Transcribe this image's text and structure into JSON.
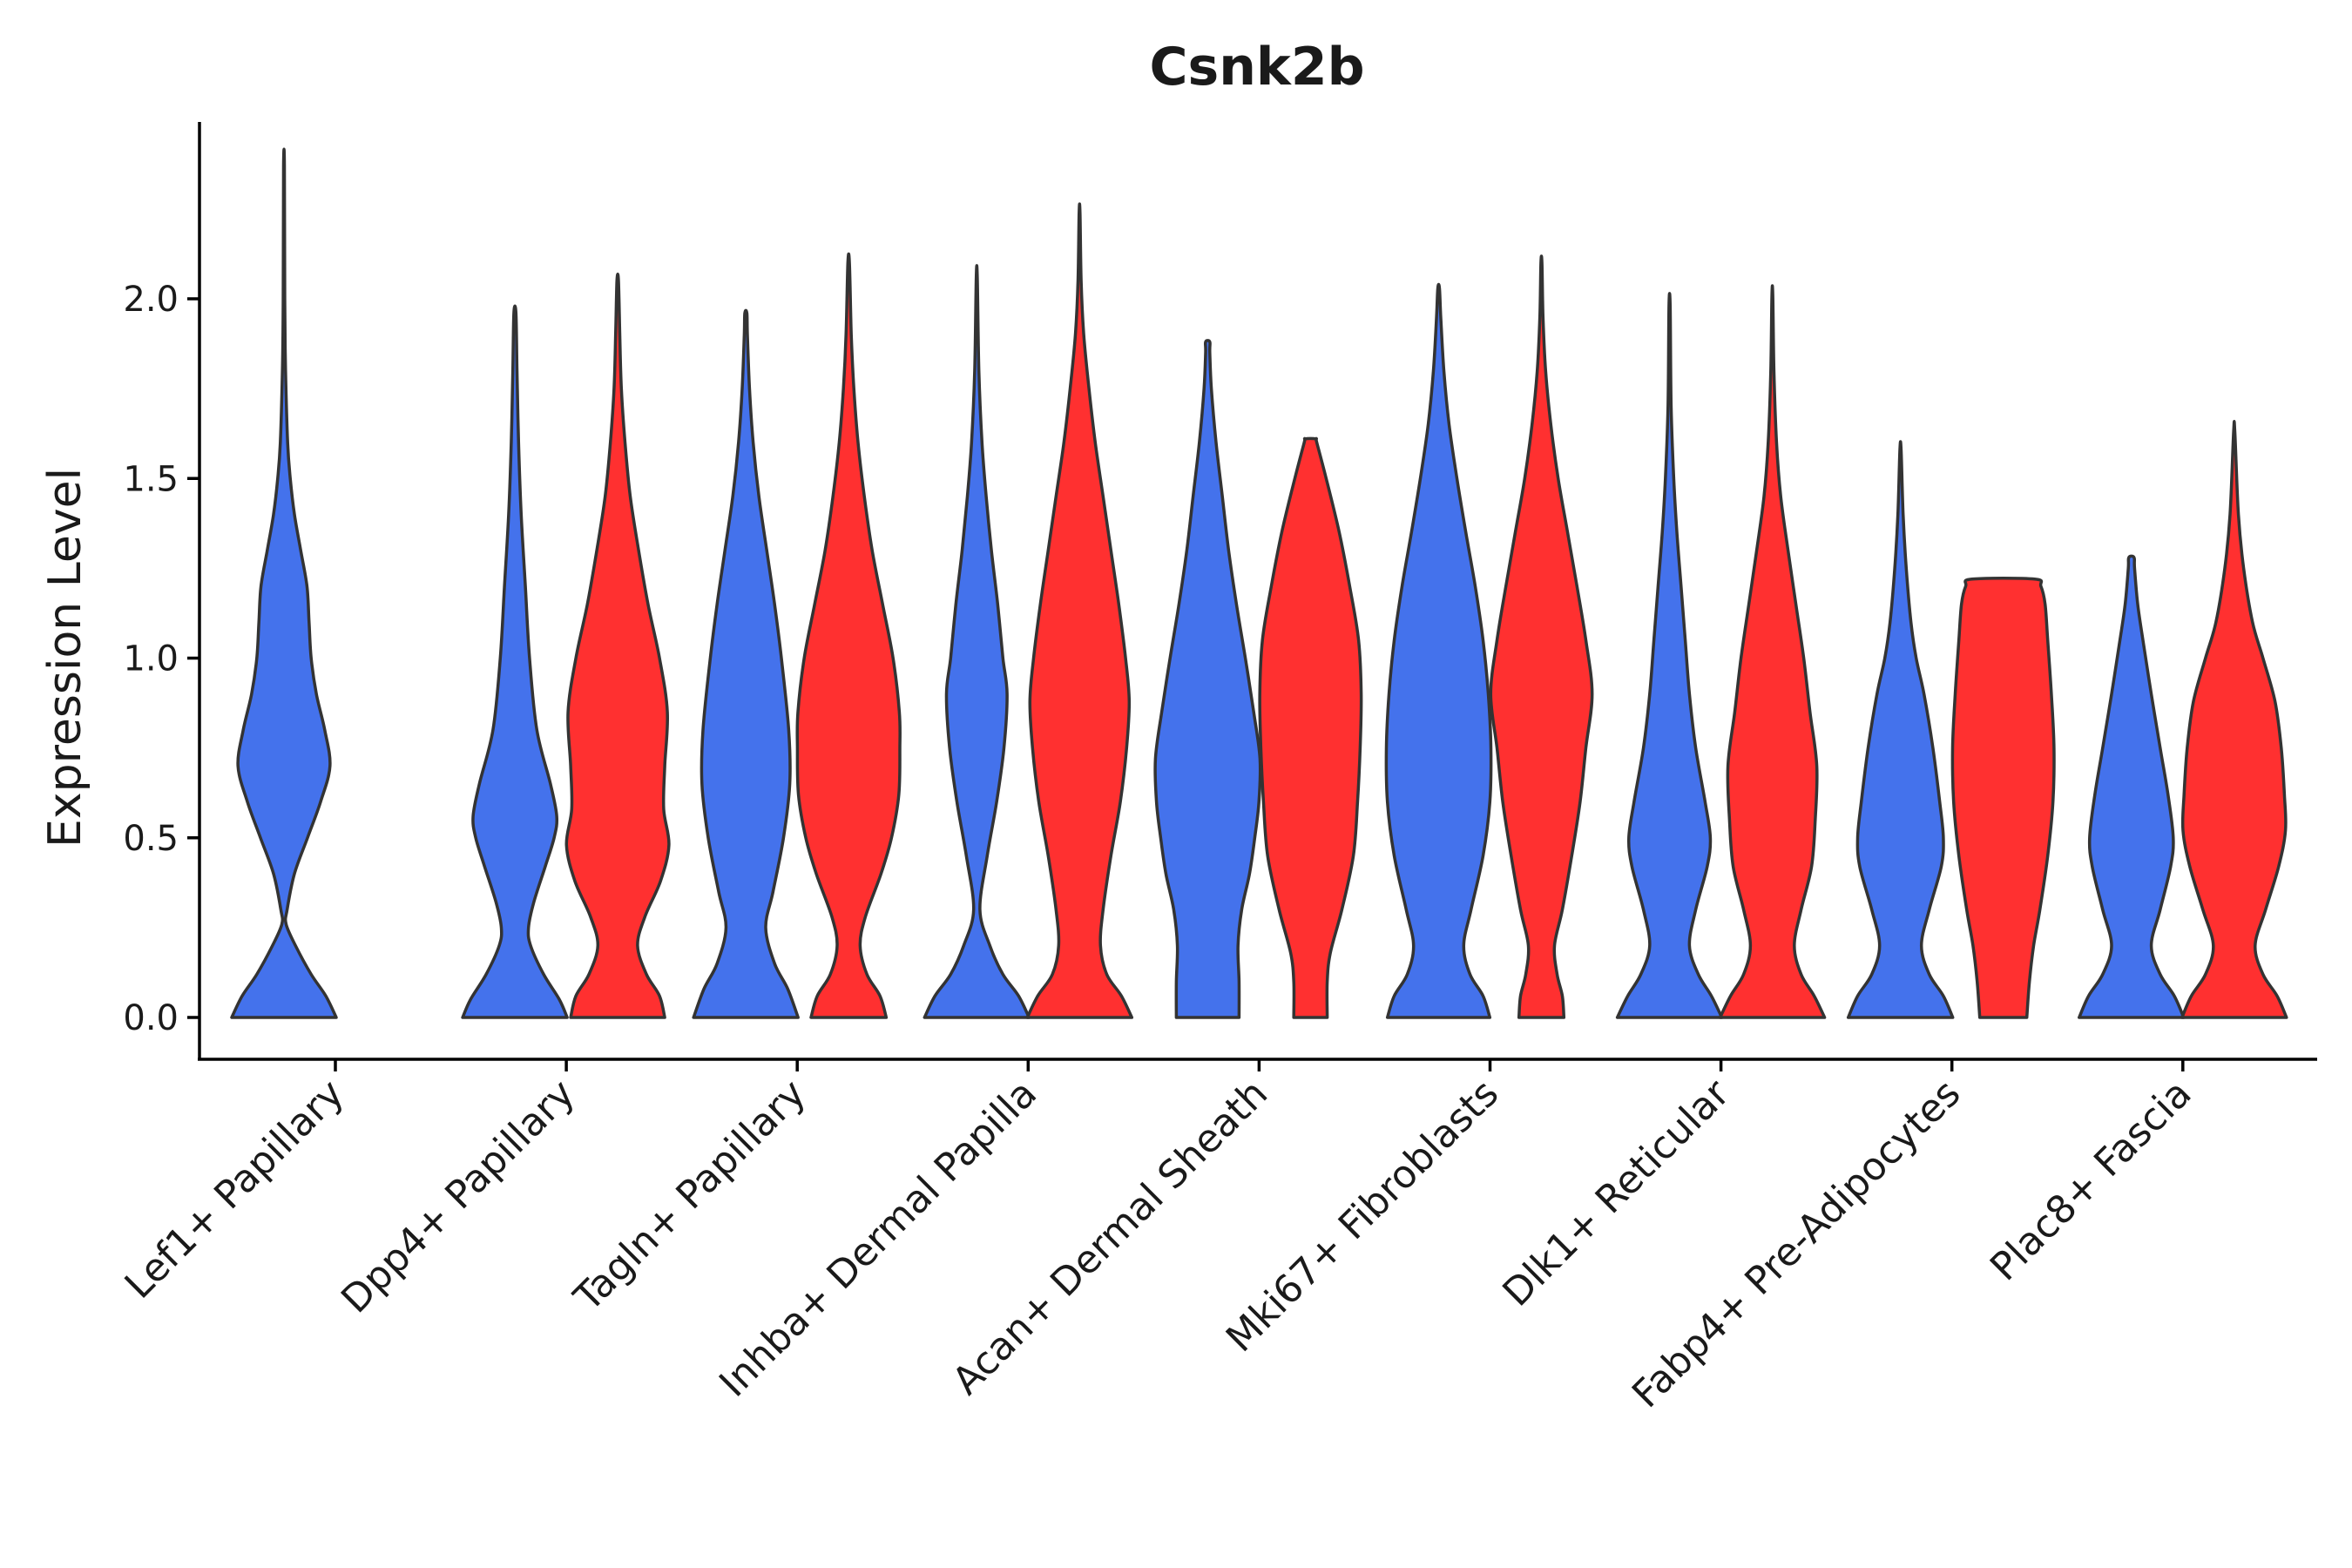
{
  "chart_data": {
    "type": "violin",
    "title": "Csnk2b",
    "xlabel": "",
    "ylabel": "Expression Level",
    "ylim": [
      -0.12,
      2.5
    ],
    "yticks": [
      "0.0",
      "0.5",
      "1.0",
      "1.5",
      "2.0"
    ],
    "grid": false,
    "colors": {
      "group_a": "#4472EC",
      "group_b": "#FF3030",
      "outline": "#333333"
    },
    "categories": [
      "Lef1+ Papillary",
      "Dpp4+ Papillary",
      "Tagln+ Papillary",
      "Inhba+ Dermal Papilla",
      "Acan+ Dermal Sheath",
      "Mki67+ Fibroblasts",
      "Dlk1+ Reticular",
      "Fabp4+ Pre-Adipocytes",
      "Plac8+ Fascia"
    ],
    "violins": [
      {
        "category": 0,
        "group": "blue",
        "max": 2.37,
        "profile": [
          [
            0,
            1
          ],
          [
            0.06,
            0.8
          ],
          [
            0.12,
            0.52
          ],
          [
            0.2,
            0.22
          ],
          [
            0.26,
            0.04
          ],
          [
            0.3,
            0.06
          ],
          [
            0.4,
            0.2
          ],
          [
            0.5,
            0.45
          ],
          [
            0.6,
            0.7
          ],
          [
            0.7,
            0.88
          ],
          [
            0.8,
            0.78
          ],
          [
            0.9,
            0.62
          ],
          [
            1.0,
            0.52
          ],
          [
            1.1,
            0.48
          ],
          [
            1.2,
            0.44
          ],
          [
            1.3,
            0.32
          ],
          [
            1.4,
            0.2
          ],
          [
            1.5,
            0.12
          ],
          [
            1.6,
            0.07
          ],
          [
            1.8,
            0.03
          ],
          [
            2.0,
            0.015
          ],
          [
            2.37,
            0.008
          ]
        ]
      },
      {
        "category": 1,
        "group": "blue",
        "max": 1.96,
        "profile": [
          [
            0,
            1
          ],
          [
            0.05,
            0.85
          ],
          [
            0.12,
            0.55
          ],
          [
            0.2,
            0.3
          ],
          [
            0.25,
            0.26
          ],
          [
            0.32,
            0.36
          ],
          [
            0.42,
            0.58
          ],
          [
            0.5,
            0.75
          ],
          [
            0.56,
            0.8
          ],
          [
            0.65,
            0.68
          ],
          [
            0.8,
            0.42
          ],
          [
            1.0,
            0.28
          ],
          [
            1.2,
            0.2
          ],
          [
            1.4,
            0.12
          ],
          [
            1.6,
            0.07
          ],
          [
            1.8,
            0.04
          ],
          [
            1.96,
            0.02
          ]
        ]
      },
      {
        "category": 1,
        "group": "red",
        "max": 2.05,
        "profile": [
          [
            0,
            0.9
          ],
          [
            0.06,
            0.8
          ],
          [
            0.12,
            0.55
          ],
          [
            0.2,
            0.38
          ],
          [
            0.28,
            0.52
          ],
          [
            0.38,
            0.82
          ],
          [
            0.48,
            0.98
          ],
          [
            0.58,
            0.88
          ],
          [
            0.7,
            0.9
          ],
          [
            0.85,
            0.95
          ],
          [
            1.0,
            0.8
          ],
          [
            1.15,
            0.58
          ],
          [
            1.3,
            0.4
          ],
          [
            1.45,
            0.24
          ],
          [
            1.6,
            0.14
          ],
          [
            1.75,
            0.07
          ],
          [
            1.9,
            0.04
          ],
          [
            2.05,
            0.015
          ]
        ]
      },
      {
        "category": 2,
        "group": "blue",
        "max": 1.96,
        "profile": [
          [
            0,
            1
          ],
          [
            0.08,
            0.8
          ],
          [
            0.15,
            0.55
          ],
          [
            0.25,
            0.38
          ],
          [
            0.35,
            0.52
          ],
          [
            0.5,
            0.72
          ],
          [
            0.65,
            0.84
          ],
          [
            0.8,
            0.82
          ],
          [
            1.0,
            0.68
          ],
          [
            1.15,
            0.55
          ],
          [
            1.3,
            0.4
          ],
          [
            1.45,
            0.25
          ],
          [
            1.6,
            0.14
          ],
          [
            1.75,
            0.07
          ],
          [
            1.9,
            0.03
          ],
          [
            1.96,
            0.02
          ]
        ]
      },
      {
        "category": 2,
        "group": "red",
        "max": 2.1,
        "profile": [
          [
            0,
            0.72
          ],
          [
            0.06,
            0.6
          ],
          [
            0.12,
            0.35
          ],
          [
            0.2,
            0.22
          ],
          [
            0.28,
            0.32
          ],
          [
            0.4,
            0.62
          ],
          [
            0.5,
            0.82
          ],
          [
            0.62,
            0.96
          ],
          [
            0.75,
            0.98
          ],
          [
            0.85,
            0.97
          ],
          [
            1.0,
            0.85
          ],
          [
            1.15,
            0.65
          ],
          [
            1.3,
            0.45
          ],
          [
            1.45,
            0.3
          ],
          [
            1.6,
            0.18
          ],
          [
            1.75,
            0.1
          ],
          [
            1.9,
            0.05
          ],
          [
            2.1,
            0.015
          ]
        ]
      },
      {
        "category": 3,
        "group": "blue",
        "max": 2.06,
        "profile": [
          [
            0,
            1
          ],
          [
            0.06,
            0.8
          ],
          [
            0.12,
            0.5
          ],
          [
            0.2,
            0.25
          ],
          [
            0.3,
            0.06
          ],
          [
            0.45,
            0.2
          ],
          [
            0.6,
            0.38
          ],
          [
            0.75,
            0.52
          ],
          [
            0.9,
            0.58
          ],
          [
            1.0,
            0.5
          ],
          [
            1.15,
            0.4
          ],
          [
            1.3,
            0.28
          ],
          [
            1.45,
            0.18
          ],
          [
            1.6,
            0.1
          ],
          [
            1.8,
            0.04
          ],
          [
            2.06,
            0.01
          ]
        ]
      },
      {
        "category": 3,
        "group": "red",
        "max": 2.24,
        "profile": [
          [
            0,
            1
          ],
          [
            0.06,
            0.8
          ],
          [
            0.12,
            0.52
          ],
          [
            0.2,
            0.4
          ],
          [
            0.3,
            0.45
          ],
          [
            0.45,
            0.6
          ],
          [
            0.6,
            0.78
          ],
          [
            0.75,
            0.9
          ],
          [
            0.88,
            0.95
          ],
          [
            1.0,
            0.88
          ],
          [
            1.15,
            0.75
          ],
          [
            1.3,
            0.6
          ],
          [
            1.45,
            0.45
          ],
          [
            1.6,
            0.3
          ],
          [
            1.75,
            0.18
          ],
          [
            1.9,
            0.08
          ],
          [
            2.05,
            0.03
          ],
          [
            2.24,
            0.008
          ]
        ]
      },
      {
        "category": 4,
        "group": "blue",
        "max": 1.88,
        "profile": [
          [
            0,
            0.6
          ],
          [
            0.1,
            0.6
          ],
          [
            0.2,
            0.58
          ],
          [
            0.3,
            0.65
          ],
          [
            0.4,
            0.8
          ],
          [
            0.5,
            0.9
          ],
          [
            0.6,
            0.98
          ],
          [
            0.72,
            1.0
          ],
          [
            0.85,
            0.88
          ],
          [
            1.0,
            0.72
          ],
          [
            1.15,
            0.55
          ],
          [
            1.3,
            0.4
          ],
          [
            1.45,
            0.28
          ],
          [
            1.6,
            0.16
          ],
          [
            1.75,
            0.07
          ],
          [
            1.85,
            0.04
          ],
          [
            1.88,
            0.04
          ]
        ]
      },
      {
        "category": 4,
        "group": "red",
        "max": 1.61,
        "profile": [
          [
            0,
            0.32
          ],
          [
            0.1,
            0.32
          ],
          [
            0.18,
            0.38
          ],
          [
            0.3,
            0.6
          ],
          [
            0.45,
            0.82
          ],
          [
            0.6,
            0.9
          ],
          [
            0.75,
            0.95
          ],
          [
            0.9,
            0.97
          ],
          [
            1.05,
            0.92
          ],
          [
            1.2,
            0.75
          ],
          [
            1.35,
            0.55
          ],
          [
            1.5,
            0.3
          ],
          [
            1.6,
            0.12
          ],
          [
            1.61,
            0.1
          ]
        ]
      },
      {
        "category": 5,
        "group": "blue",
        "max": 2.03,
        "profile": [
          [
            0,
            0.98
          ],
          [
            0.06,
            0.85
          ],
          [
            0.12,
            0.6
          ],
          [
            0.2,
            0.48
          ],
          [
            0.3,
            0.62
          ],
          [
            0.45,
            0.85
          ],
          [
            0.6,
            0.98
          ],
          [
            0.75,
            1.0
          ],
          [
            0.9,
            0.95
          ],
          [
            1.05,
            0.85
          ],
          [
            1.2,
            0.7
          ],
          [
            1.35,
            0.52
          ],
          [
            1.5,
            0.35
          ],
          [
            1.65,
            0.2
          ],
          [
            1.8,
            0.1
          ],
          [
            1.95,
            0.04
          ],
          [
            2.03,
            0.015
          ]
        ]
      },
      {
        "category": 5,
        "group": "red",
        "max": 2.1,
        "profile": [
          [
            0,
            0.43
          ],
          [
            0.06,
            0.4
          ],
          [
            0.12,
            0.3
          ],
          [
            0.2,
            0.25
          ],
          [
            0.3,
            0.4
          ],
          [
            0.45,
            0.58
          ],
          [
            0.6,
            0.74
          ],
          [
            0.75,
            0.85
          ],
          [
            0.9,
            0.97
          ],
          [
            1.05,
            0.85
          ],
          [
            1.2,
            0.68
          ],
          [
            1.35,
            0.5
          ],
          [
            1.5,
            0.32
          ],
          [
            1.65,
            0.18
          ],
          [
            1.8,
            0.08
          ],
          [
            1.95,
            0.03
          ],
          [
            2.1,
            0.01
          ]
        ]
      },
      {
        "category": 6,
        "group": "blue",
        "max": 1.98,
        "profile": [
          [
            0,
            1
          ],
          [
            0.06,
            0.8
          ],
          [
            0.12,
            0.55
          ],
          [
            0.2,
            0.38
          ],
          [
            0.3,
            0.5
          ],
          [
            0.42,
            0.72
          ],
          [
            0.5,
            0.78
          ],
          [
            0.6,
            0.68
          ],
          [
            0.75,
            0.5
          ],
          [
            0.9,
            0.38
          ],
          [
            1.05,
            0.3
          ],
          [
            1.2,
            0.22
          ],
          [
            1.35,
            0.14
          ],
          [
            1.5,
            0.08
          ],
          [
            1.7,
            0.03
          ],
          [
            1.98,
            0.012
          ]
        ]
      },
      {
        "category": 6,
        "group": "red",
        "max": 2.01,
        "profile": [
          [
            0,
            1
          ],
          [
            0.06,
            0.8
          ],
          [
            0.12,
            0.55
          ],
          [
            0.2,
            0.42
          ],
          [
            0.3,
            0.55
          ],
          [
            0.42,
            0.75
          ],
          [
            0.55,
            0.82
          ],
          [
            0.7,
            0.85
          ],
          [
            0.85,
            0.72
          ],
          [
            1.0,
            0.6
          ],
          [
            1.15,
            0.45
          ],
          [
            1.3,
            0.3
          ],
          [
            1.45,
            0.16
          ],
          [
            1.6,
            0.08
          ],
          [
            1.8,
            0.03
          ],
          [
            2.01,
            0.008
          ]
        ]
      },
      {
        "category": 7,
        "group": "blue",
        "max": 1.58,
        "profile": [
          [
            0,
            1
          ],
          [
            0.06,
            0.82
          ],
          [
            0.12,
            0.55
          ],
          [
            0.2,
            0.4
          ],
          [
            0.3,
            0.55
          ],
          [
            0.42,
            0.78
          ],
          [
            0.5,
            0.82
          ],
          [
            0.6,
            0.75
          ],
          [
            0.75,
            0.62
          ],
          [
            0.9,
            0.45
          ],
          [
            1.0,
            0.3
          ],
          [
            1.1,
            0.2
          ],
          [
            1.25,
            0.11
          ],
          [
            1.4,
            0.05
          ],
          [
            1.58,
            0.012
          ]
        ]
      },
      {
        "category": 7,
        "group": "red",
        "max": 1.22,
        "profile": [
          [
            0,
            0.45
          ],
          [
            0.1,
            0.5
          ],
          [
            0.2,
            0.58
          ],
          [
            0.3,
            0.7
          ],
          [
            0.45,
            0.85
          ],
          [
            0.6,
            0.95
          ],
          [
            0.75,
            0.97
          ],
          [
            0.9,
            0.92
          ],
          [
            1.05,
            0.85
          ],
          [
            1.15,
            0.8
          ],
          [
            1.2,
            0.72
          ],
          [
            1.22,
            0.6
          ]
        ]
      },
      {
        "category": 8,
        "group": "blue",
        "max": 1.28,
        "profile": [
          [
            0,
            1
          ],
          [
            0.06,
            0.82
          ],
          [
            0.12,
            0.55
          ],
          [
            0.2,
            0.38
          ],
          [
            0.3,
            0.55
          ],
          [
            0.42,
            0.75
          ],
          [
            0.5,
            0.8
          ],
          [
            0.62,
            0.7
          ],
          [
            0.75,
            0.55
          ],
          [
            0.9,
            0.38
          ],
          [
            1.05,
            0.22
          ],
          [
            1.15,
            0.12
          ],
          [
            1.25,
            0.06
          ],
          [
            1.28,
            0.05
          ]
        ]
      },
      {
        "category": 8,
        "group": "red",
        "max": 1.63,
        "profile": [
          [
            0,
            1
          ],
          [
            0.06,
            0.82
          ],
          [
            0.12,
            0.55
          ],
          [
            0.2,
            0.4
          ],
          [
            0.3,
            0.6
          ],
          [
            0.42,
            0.85
          ],
          [
            0.52,
            0.98
          ],
          [
            0.62,
            0.96
          ],
          [
            0.75,
            0.9
          ],
          [
            0.88,
            0.78
          ],
          [
            1.0,
            0.55
          ],
          [
            1.1,
            0.35
          ],
          [
            1.25,
            0.18
          ],
          [
            1.4,
            0.08
          ],
          [
            1.63,
            0.012
          ]
        ]
      }
    ]
  }
}
